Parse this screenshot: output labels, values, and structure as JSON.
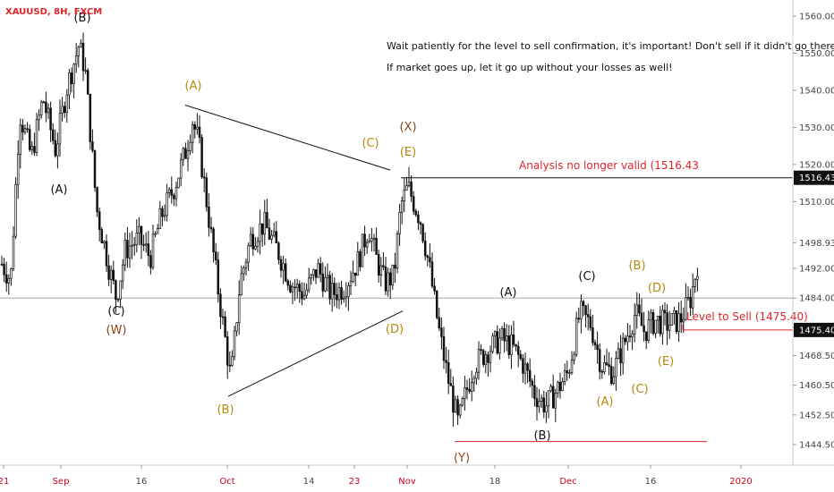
{
  "symbol": "XAUUSD, 8H, FXCM",
  "notes": {
    "line1": "Wait patiently for the level to sell confirmation, it's important! Don't sell if it didn't go there!",
    "line2": "If market goes up, let it go up without your losses as well!"
  },
  "annotations": {
    "invalid_label": "Analysis no longer valid (1516.43",
    "sell_label": "Level to Sell (1475.40)"
  },
  "colors": {
    "candle": "#111111",
    "wave_black": "#111111",
    "wave_orange": "#b8860b",
    "wave_brown": "#8b4513",
    "annotation_red": "#e0252b",
    "price_box": "#111111"
  },
  "chart_data": {
    "type": "candlestick",
    "title": "XAUUSD, 8H, FXCM",
    "ylim": [
      1440,
      1566
    ],
    "y_ticks": [
      1560.0,
      1550.0,
      1540.0,
      1530.0,
      1520.0,
      1510.0,
      1498.93,
      1492.0,
      1484.0,
      1476.0,
      1468.5,
      1460.5,
      1452.5,
      1444.5
    ],
    "y_tick_labels": [
      "1560.00",
      "1550.00",
      "1540.00",
      "1530.00",
      "1520.00",
      "1510.00",
      "1498.93",
      "1492.00",
      "1484.00",
      "1476.00",
      "1468.50",
      "1460.50",
      "1452.50",
      "1444.50"
    ],
    "x_tick_labels": [
      "21",
      "Sep",
      "16",
      "Oct",
      "14",
      "23",
      "Nov",
      "18",
      "Dec",
      "16",
      "2020"
    ],
    "path_points": [
      [
        0,
        1494
      ],
      [
        12,
        1489
      ],
      [
        22,
        1534
      ],
      [
        35,
        1522
      ],
      [
        48,
        1538
      ],
      [
        62,
        1524
      ],
      [
        75,
        1541
      ],
      [
        88,
        1552
      ],
      [
        95,
        1546
      ],
      [
        108,
        1508
      ],
      [
        122,
        1492
      ],
      [
        130,
        1484
      ],
      [
        140,
        1497
      ],
      [
        155,
        1500
      ],
      [
        168,
        1495
      ],
      [
        180,
        1506
      ],
      [
        195,
        1514
      ],
      [
        208,
        1524
      ],
      [
        215,
        1532
      ],
      [
        222,
        1526
      ],
      [
        232,
        1508
      ],
      [
        245,
        1484
      ],
      [
        258,
        1462
      ],
      [
        268,
        1488
      ],
      [
        280,
        1500
      ],
      [
        295,
        1504
      ],
      [
        310,
        1497
      ],
      [
        325,
        1488
      ],
      [
        340,
        1485
      ],
      [
        355,
        1492
      ],
      [
        370,
        1485
      ],
      [
        385,
        1487
      ],
      [
        400,
        1494
      ],
      [
        412,
        1503
      ],
      [
        420,
        1495
      ],
      [
        430,
        1488
      ],
      [
        440,
        1490
      ],
      [
        448,
        1509
      ],
      [
        456,
        1514
      ],
      [
        462,
        1510
      ],
      [
        470,
        1505
      ],
      [
        480,
        1492
      ],
      [
        490,
        1476
      ],
      [
        500,
        1463
      ],
      [
        512,
        1450
      ],
      [
        520,
        1458
      ],
      [
        530,
        1466
      ],
      [
        545,
        1470
      ],
      [
        560,
        1473
      ],
      [
        572,
        1471
      ],
      [
        585,
        1466
      ],
      [
        598,
        1458
      ],
      [
        610,
        1455
      ],
      [
        622,
        1459
      ],
      [
        635,
        1464
      ],
      [
        648,
        1480
      ],
      [
        660,
        1477
      ],
      [
        672,
        1466
      ],
      [
        685,
        1464
      ],
      [
        698,
        1472
      ],
      [
        710,
        1480
      ],
      [
        720,
        1475
      ],
      [
        732,
        1478
      ],
      [
        745,
        1477
      ],
      [
        760,
        1478
      ],
      [
        772,
        1484
      ],
      [
        780,
        1494
      ],
      [
        782,
        1497
      ]
    ],
    "levels": [
      {
        "name": "invalidation",
        "value": 1516.43,
        "label": "1516.43"
      },
      {
        "name": "sell-level",
        "value": 1475.4,
        "label": "1475.40"
      }
    ],
    "current_price_label": "1498.93",
    "wave_labels": [
      {
        "text": "(B)",
        "color": "black"
      },
      {
        "text": "(A)",
        "color": "black"
      },
      {
        "text": "(C)",
        "color": "black"
      },
      {
        "text": "(W)",
        "color": "brown"
      },
      {
        "text": "(A)",
        "color": "orange"
      },
      {
        "text": "(B)",
        "color": "orange"
      },
      {
        "text": "(C)",
        "color": "orange"
      },
      {
        "text": "(X)",
        "color": "brown"
      },
      {
        "text": "(E)",
        "color": "orange"
      },
      {
        "text": "(D)",
        "color": "orange"
      },
      {
        "text": "(Y)",
        "color": "brown"
      },
      {
        "text": "(A)",
        "color": "black"
      },
      {
        "text": "(B)",
        "color": "black"
      },
      {
        "text": "(C)",
        "color": "black"
      },
      {
        "text": "(A)",
        "color": "orange"
      },
      {
        "text": "(B)",
        "color": "orange"
      },
      {
        "text": "(C)",
        "color": "orange"
      },
      {
        "text": "(D)",
        "color": "orange"
      },
      {
        "text": "(E)",
        "color": "orange"
      }
    ]
  }
}
